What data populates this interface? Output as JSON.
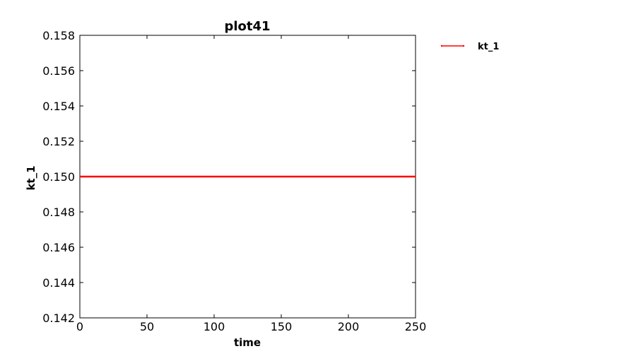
{
  "chart_data": {
    "type": "line",
    "title": "plot41",
    "xlabel": "time",
    "ylabel": "kt_1",
    "xlim": [
      0,
      250
    ],
    "ylim": [
      0.142,
      0.158
    ],
    "x_ticks": [
      "0",
      "50",
      "100",
      "150",
      "200",
      "250"
    ],
    "y_ticks": [
      "0.142",
      "0.144",
      "0.146",
      "0.148",
      "0.150",
      "0.152",
      "0.154",
      "0.156",
      "0.158"
    ],
    "grid": false,
    "legend_position": "outside-top-right",
    "series": [
      {
        "name": "kt_1",
        "color": "#ff0000",
        "x": [
          0,
          250
        ],
        "y": [
          0.15,
          0.15
        ]
      }
    ]
  }
}
